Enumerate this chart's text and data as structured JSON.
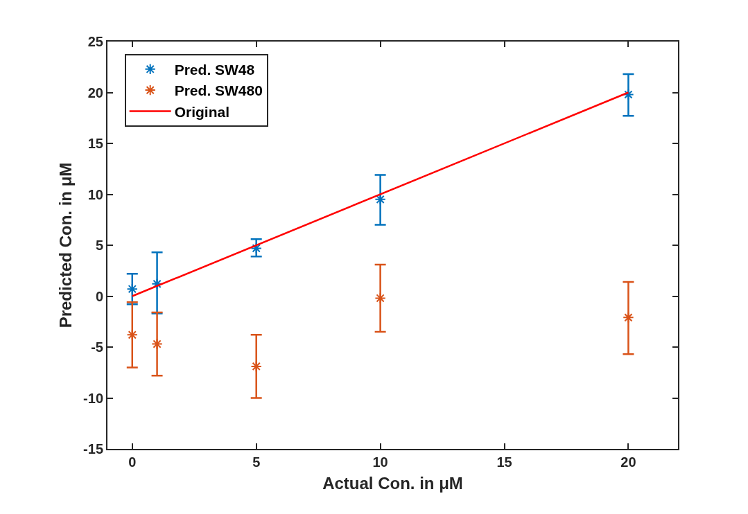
{
  "chart_data": {
    "type": "scatter",
    "xlabel": "Actual Con. in μM",
    "ylabel": "Predicted Con. in μM",
    "x": [
      0,
      1,
      5,
      10,
      20
    ],
    "series": [
      {
        "name": "Pred. SW48",
        "type": "scatter",
        "marker": "cross",
        "color": "#0072bd",
        "values": [
          0.7,
          1.2,
          4.7,
          9.5,
          19.8
        ],
        "errors": [
          [
            -0.8,
            2.2
          ],
          [
            -1.7,
            4.3
          ],
          [
            3.9,
            5.6
          ],
          [
            7.0,
            11.9
          ],
          [
            17.7,
            21.8
          ]
        ]
      },
      {
        "name": "Pred. SW480",
        "type": "scatter",
        "marker": "cross",
        "color": "#d95319",
        "values": [
          -3.8,
          -4.7,
          -6.9,
          -0.2,
          -2.1
        ],
        "errors": [
          [
            -7.0,
            -0.6
          ],
          [
            -7.8,
            -1.6
          ],
          [
            -10.0,
            -3.8
          ],
          [
            -3.5,
            3.1
          ],
          [
            -5.7,
            1.4
          ]
        ]
      },
      {
        "name": "Original",
        "type": "line",
        "marker": "none",
        "line_style": "solid",
        "color": "#ff0000",
        "x": [
          0,
          20
        ],
        "values": [
          0,
          20
        ]
      }
    ],
    "xlim": [
      -1,
      22
    ],
    "xticks": [
      0,
      5,
      10,
      15,
      20
    ],
    "ylim": [
      -15,
      25
    ],
    "yticks": [
      -15,
      -10,
      -5,
      0,
      5,
      10,
      15,
      20,
      25
    ],
    "grid": false,
    "legend": "top left"
  }
}
